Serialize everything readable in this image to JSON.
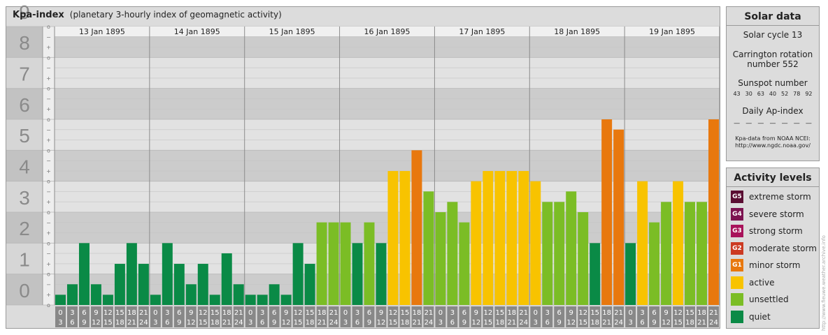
{
  "header": {
    "title": "Kpa-index",
    "subtitle": "(planetary 3-hourly index of geomagnetic activity)"
  },
  "chart_data": {
    "type": "bar",
    "title": "Kpa-index",
    "subtitle": "(planetary 3-hourly index of geomagnetic activity)",
    "ylim": [
      0,
      9
    ],
    "y_ticks": [
      "0",
      "1",
      "2",
      "3",
      "4",
      "5",
      "6",
      "7",
      "8",
      "9"
    ],
    "minor_ticks": [
      "o",
      "+",
      "−"
    ],
    "days": [
      "13 Jan 1895",
      "14 Jan 1895",
      "15 Jan 1895",
      "16 Jan 1895",
      "17 Jan 1895",
      "18 Jan 1895",
      "19 Jan 1895"
    ],
    "interval_start": [
      "0",
      "3",
      "6",
      "9",
      "12",
      "15",
      "18",
      "21"
    ],
    "interval_end": [
      "3",
      "6",
      "9",
      "12",
      "15",
      "18",
      "21",
      "24"
    ],
    "values": [
      [
        0.33,
        0.67,
        2.0,
        0.67,
        0.33,
        1.33,
        2.0,
        1.33
      ],
      [
        0.33,
        2.0,
        1.33,
        0.67,
        1.33,
        0.33,
        1.67,
        0.67
      ],
      [
        0.33,
        0.33,
        0.67,
        0.33,
        2.0,
        1.33,
        2.67,
        2.67
      ],
      [
        2.67,
        2.0,
        2.67,
        2.0,
        4.33,
        4.33,
        5.0,
        3.67
      ],
      [
        3.0,
        3.33,
        2.67,
        4.0,
        4.33,
        4.33,
        4.33,
        4.33
      ],
      [
        4.0,
        3.33,
        3.33,
        3.67,
        3.0,
        2.0,
        6.0,
        5.67
      ],
      [
        2.0,
        4.0,
        2.67,
        3.33,
        4.0,
        3.33,
        3.33,
        6.0
      ]
    ],
    "thresholds": {
      "quiet_below": 2.5,
      "unsettled_below": 4.0,
      "active_below": 5.0,
      "g1_below": 6.5
    },
    "colors": {
      "quiet": "#0a8a46",
      "unsettled": "#7bbd25",
      "active": "#f8c300",
      "g1": "#e8780e",
      "g2": "#cc3a22",
      "g3": "#a8125a",
      "g4": "#7c1250",
      "g5": "#5a0d32"
    },
    "grid": true,
    "legend_position": "right"
  },
  "solar": {
    "title": "Solar data",
    "cycle": "Solar cycle 13",
    "carrington_1": "Carrington rotation",
    "carrington_2": "number 552",
    "ssn_title": "Sunspot number",
    "ssn_values": [
      "43",
      "30",
      "63",
      "40",
      "52",
      "78",
      "92"
    ],
    "ap_title": "Daily Ap-index",
    "ap_values": [
      "—",
      "—",
      "—",
      "—",
      "—",
      "—",
      "—"
    ],
    "source_1": "Kpa-data from NOAA NCEI:",
    "source_2": "http://www.ngdc.noaa.gov/"
  },
  "levels": {
    "title": "Activity levels",
    "items": [
      {
        "code": "G5",
        "label": "extreme storm",
        "color": "#5a0d32"
      },
      {
        "code": "G4",
        "label": "severe storm",
        "color": "#7c1250"
      },
      {
        "code": "G3",
        "label": "strong storm",
        "color": "#a8125a"
      },
      {
        "code": "G2",
        "label": "moderate storm",
        "color": "#cc3a22"
      },
      {
        "code": "G1",
        "label": "minor storm",
        "color": "#e8780e"
      },
      {
        "code": "",
        "label": "active",
        "color": "#f8c300"
      },
      {
        "code": "",
        "label": "unsettled",
        "color": "#7bbd25"
      },
      {
        "code": "",
        "label": "quiet",
        "color": "#0a8a46"
      }
    ]
  },
  "credit": "http://www.fieuwe.weather.archive.info"
}
